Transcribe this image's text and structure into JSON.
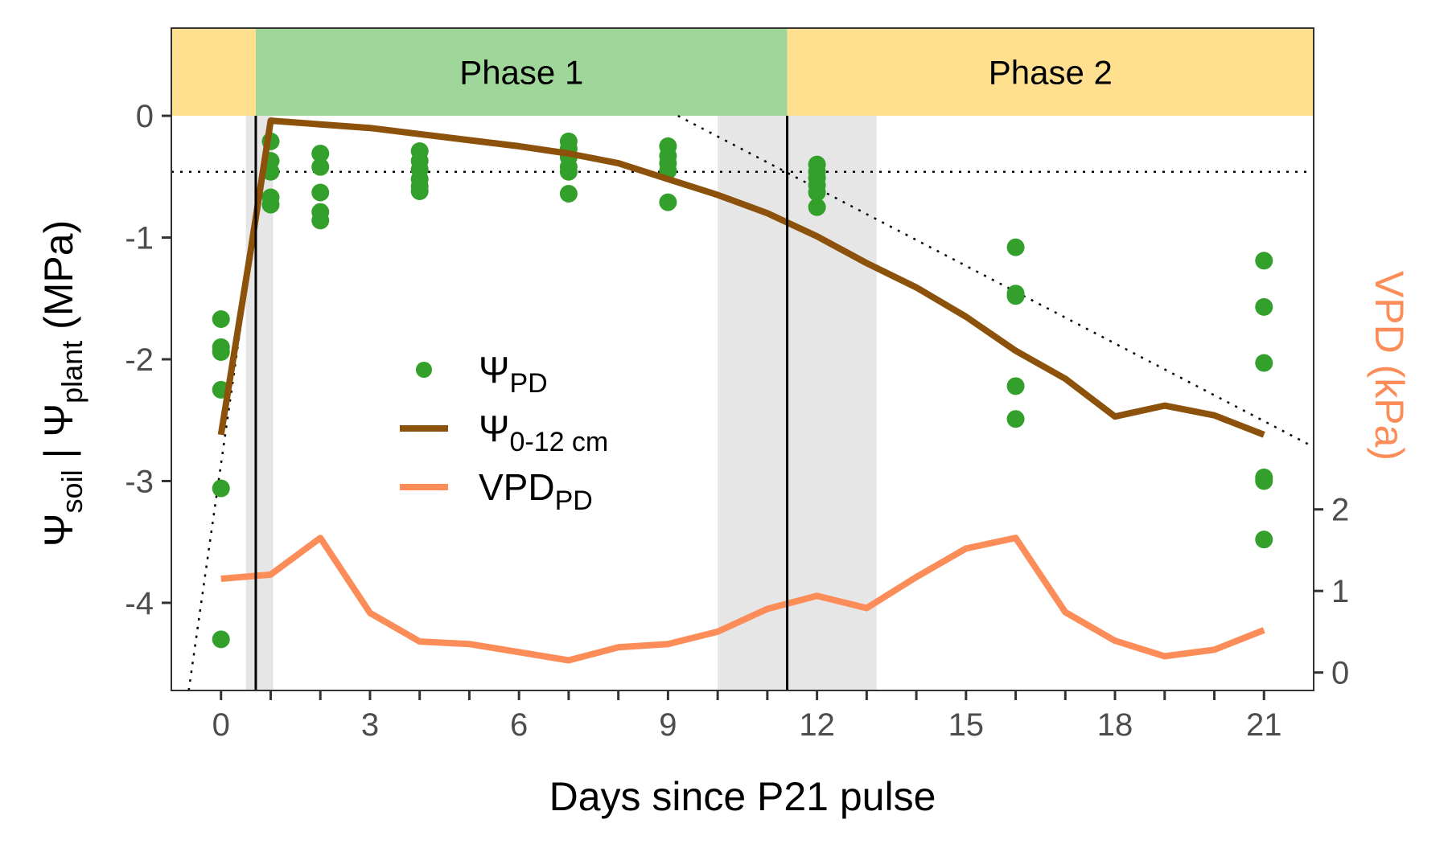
{
  "chart_data": {
    "type": "line",
    "xlabel": "Days since P21 pulse",
    "ylabel": {
      "prefix": "Ψ",
      "sub1": "soil",
      "mid": " | Ψ",
      "sub2": "plant",
      "suffix": " (MPa)"
    },
    "y2label": "VPD (kPa)",
    "xlim": [
      -1,
      22
    ],
    "ylim": [
      -4.72,
      0.72
    ],
    "y2lim": [
      -0.22,
      7.9
    ],
    "x_ticks": [
      0,
      1,
      2,
      3,
      4,
      5,
      6,
      7,
      8,
      9,
      10,
      11,
      12,
      13,
      14,
      15,
      16,
      17,
      18,
      19,
      20,
      21
    ],
    "x_tick_labels": [
      "0",
      "3",
      "6",
      "9",
      "12",
      "15",
      "18",
      "21"
    ],
    "x_tick_label_values": [
      0,
      3,
      6,
      9,
      12,
      15,
      18,
      21
    ],
    "y_ticks": [
      0,
      -1,
      -2,
      -3,
      -4
    ],
    "y_tick_labels": [
      "0",
      "-1",
      "-2",
      "-3",
      "-4"
    ],
    "y2_ticks": [
      0,
      1,
      2
    ],
    "y2_tick_labels": [
      "0",
      "1",
      "2"
    ],
    "grid": false,
    "legend_position": "center-left",
    "phase_bands": [
      {
        "x0": -1,
        "x1": 0.7,
        "label": "",
        "color": "#fee08f"
      },
      {
        "x0": 0.7,
        "x1": 11.4,
        "label": "Phase 1",
        "color": "#9fd79b"
      },
      {
        "x0": 11.4,
        "x1": 22,
        "label": "Phase 2",
        "color": "#fee08f"
      }
    ],
    "shaded_regions": [
      {
        "x0": 0.5,
        "x1": 1.05,
        "color": "#e6e6e6"
      },
      {
        "x0": 10,
        "x1": 13.2,
        "color": "#e6e6e6"
      }
    ],
    "vertical_lines": [
      0.7,
      11.4
    ],
    "horizontal_dotted": -0.46,
    "dotted_lines": [
      [
        [
          -0.65,
          -4.72
        ],
        [
          1.0,
          0.0
        ]
      ],
      [
        [
          9.2,
          0.0
        ],
        [
          22,
          -2.72
        ]
      ]
    ],
    "series": [
      {
        "name": "ΨPD",
        "legend": {
          "main": "Ψ",
          "sub": "PD"
        },
        "kind": "scatter",
        "color": "#33a02c",
        "axis": "left",
        "points": [
          [
            0,
            -1.67
          ],
          [
            0,
            -1.9
          ],
          [
            0,
            -1.94
          ],
          [
            0,
            -2.25
          ],
          [
            0,
            -3.06
          ],
          [
            0,
            -4.3
          ],
          [
            1,
            -0.21
          ],
          [
            1,
            -0.37
          ],
          [
            1,
            -0.46
          ],
          [
            1,
            -0.67
          ],
          [
            1,
            -0.73
          ],
          [
            2,
            -0.31
          ],
          [
            2,
            -0.42
          ],
          [
            2,
            -0.63
          ],
          [
            2,
            -0.79
          ],
          [
            2,
            -0.86
          ],
          [
            4,
            -0.29
          ],
          [
            4,
            -0.37
          ],
          [
            4,
            -0.44
          ],
          [
            4,
            -0.52
          ],
          [
            4,
            -0.58
          ],
          [
            4,
            -0.62
          ],
          [
            7,
            -0.21
          ],
          [
            7,
            -0.27
          ],
          [
            7,
            -0.34
          ],
          [
            7,
            -0.42
          ],
          [
            7,
            -0.46
          ],
          [
            7,
            -0.64
          ],
          [
            9,
            -0.25
          ],
          [
            9,
            -0.33
          ],
          [
            9,
            -0.39
          ],
          [
            9,
            -0.45
          ],
          [
            9,
            -0.71
          ],
          [
            12,
            -0.4
          ],
          [
            12,
            -0.46
          ],
          [
            12,
            -0.51
          ],
          [
            12,
            -0.57
          ],
          [
            12,
            -0.63
          ],
          [
            12,
            -0.75
          ],
          [
            16,
            -1.08
          ],
          [
            16,
            -1.46
          ],
          [
            16,
            -1.48
          ],
          [
            16,
            -2.22
          ],
          [
            16,
            -2.49
          ],
          [
            21,
            -1.19
          ],
          [
            21,
            -1.57
          ],
          [
            21,
            -2.03
          ],
          [
            21,
            -2.97
          ],
          [
            21,
            -3.0
          ],
          [
            21,
            -3.48
          ]
        ]
      },
      {
        "name": "Ψ0-12 cm",
        "legend": {
          "main": "Ψ",
          "sub": "0-12 cm"
        },
        "kind": "line",
        "color": "#8c510a",
        "axis": "left",
        "points": [
          [
            0,
            -2.62
          ],
          [
            0.6,
            -1.1
          ],
          [
            1,
            -0.04
          ],
          [
            2,
            -0.07
          ],
          [
            3,
            -0.1
          ],
          [
            4,
            -0.15
          ],
          [
            5,
            -0.2
          ],
          [
            6,
            -0.25
          ],
          [
            7,
            -0.31
          ],
          [
            8,
            -0.39
          ],
          [
            9,
            -0.52
          ],
          [
            10,
            -0.65
          ],
          [
            11,
            -0.8
          ],
          [
            12,
            -0.99
          ],
          [
            13,
            -1.21
          ],
          [
            14,
            -1.41
          ],
          [
            15,
            -1.65
          ],
          [
            16,
            -1.93
          ],
          [
            17,
            -2.16
          ],
          [
            18,
            -2.47
          ],
          [
            19,
            -2.38
          ],
          [
            20,
            -2.46
          ],
          [
            21,
            -2.62
          ]
        ]
      },
      {
        "name": "VPDPD",
        "legend": {
          "main": "VPD",
          "sub": "PD"
        },
        "kind": "line",
        "color": "#fc8d59",
        "axis": "right",
        "points": [
          [
            0,
            1.15
          ],
          [
            1,
            1.2
          ],
          [
            2,
            1.65
          ],
          [
            3,
            0.73
          ],
          [
            4,
            0.38
          ],
          [
            5,
            0.35
          ],
          [
            6,
            0.25
          ],
          [
            7,
            0.15
          ],
          [
            8,
            0.31
          ],
          [
            9,
            0.35
          ],
          [
            10,
            0.5
          ],
          [
            11,
            0.78
          ],
          [
            12,
            0.94
          ],
          [
            13,
            0.79
          ],
          [
            14,
            1.17
          ],
          [
            15,
            1.52
          ],
          [
            16,
            1.65
          ],
          [
            17,
            0.74
          ],
          [
            18,
            0.39
          ],
          [
            19,
            0.2
          ],
          [
            20,
            0.28
          ],
          [
            21,
            0.52
          ]
        ]
      }
    ]
  }
}
